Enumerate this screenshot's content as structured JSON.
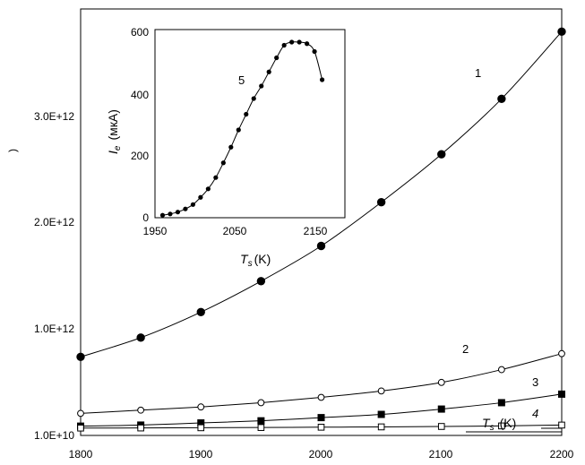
{
  "chart_data": [
    {
      "type": "line",
      "title": "",
      "xlabel": "",
      "ylabel": "",
      "xlim": [
        1800,
        2200
      ],
      "ylim": [
        10000000000,
        3900000000000
      ],
      "x_ticks": [
        "1800",
        "1900",
        "2000",
        "2100",
        "2200"
      ],
      "y_ticks": [
        "1.0E+10",
        "1.0E+12",
        "2.0E+12",
        "3.0E+12"
      ],
      "axis_label_fragments": [
        ")"
      ],
      "embedded_axis_label": {
        "symbol": "T",
        "subscript": "s",
        "unit": "(K)"
      },
      "grid": false,
      "series": [
        {
          "name": "1",
          "marker": "filled-circle",
          "x": [
            1800,
            1850,
            1900,
            1950,
            2000,
            2050,
            2100,
            2150,
            2200
          ],
          "y": [
            680000000000,
            860000000000,
            1100000000000,
            1390000000000,
            1720000000000,
            2130000000000,
            2580000000000,
            3100000000000,
            3730000000000
          ]
        },
        {
          "name": "2",
          "marker": "open-circle",
          "x": [
            1800,
            1850,
            1900,
            1950,
            2000,
            2050,
            2100,
            2150,
            2200
          ],
          "y": [
            150000000000,
            180000000000,
            210000000000,
            250000000000,
            300000000000,
            360000000000,
            440000000000,
            560000000000,
            710000000000
          ]
        },
        {
          "name": "3",
          "marker": "filled-square",
          "x": [
            1800,
            1850,
            1900,
            1950,
            2000,
            2050,
            2100,
            2150,
            2200
          ],
          "y": [
            30000000000,
            40000000000,
            60000000000,
            80000000000,
            110000000000,
            140000000000,
            190000000000,
            250000000000,
            330000000000
          ]
        },
        {
          "name": "4",
          "marker": "open-square",
          "x": [
            1800,
            1850,
            1900,
            1950,
            2000,
            2050,
            2100,
            2150,
            2200
          ],
          "y": [
            12000000000,
            13000000000,
            15000000000,
            17000000000,
            20000000000,
            23000000000,
            27000000000,
            32000000000,
            40000000000
          ]
        }
      ]
    },
    {
      "type": "line",
      "title": "",
      "xlabel": {
        "symbol": "T",
        "subscript": "s",
        "unit": "(K)"
      },
      "ylabel": {
        "symbol": "I",
        "subscript": "e",
        "unit": "(мкА)"
      },
      "xlim": [
        1950,
        2200
      ],
      "ylim": [
        0,
        600
      ],
      "x_ticks": [
        "1950",
        "2050",
        "2150"
      ],
      "y_ticks": [
        "0",
        "200",
        "400",
        "600"
      ],
      "grid": false,
      "series": [
        {
          "name": "5",
          "marker": "small-filled-circle",
          "x": [
            1960,
            1970,
            1980,
            1990,
            2000,
            2010,
            2020,
            2030,
            2040,
            2050,
            2060,
            2070,
            2080,
            2090,
            2100,
            2110,
            2120,
            2130,
            2140,
            2150,
            2160,
            2170
          ],
          "y": [
            8,
            12,
            18,
            28,
            42,
            65,
            92,
            128,
            175,
            225,
            280,
            330,
            380,
            420,
            465,
            510,
            550,
            560,
            560,
            555,
            530,
            440
          ]
        }
      ]
    }
  ]
}
